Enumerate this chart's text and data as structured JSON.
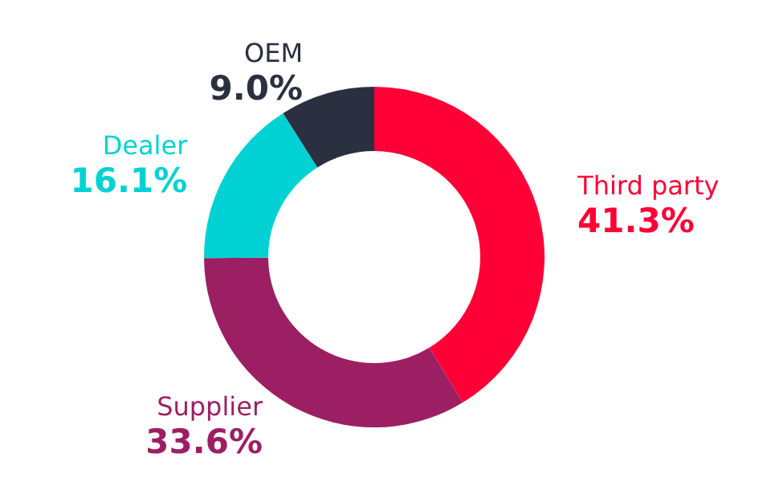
{
  "chart_data": {
    "type": "donut",
    "categories": [
      "Third party",
      "Supplier",
      "Dealer",
      "OEM"
    ],
    "values": [
      41.3,
      33.6,
      16.1,
      9.0
    ],
    "value_labels": [
      "41.3%",
      "33.6%",
      "16.1%",
      "9.0%"
    ],
    "colors": [
      "#ff0036",
      "#9c1f63",
      "#00d2d3",
      "#2b3040"
    ],
    "legend": false
  }
}
